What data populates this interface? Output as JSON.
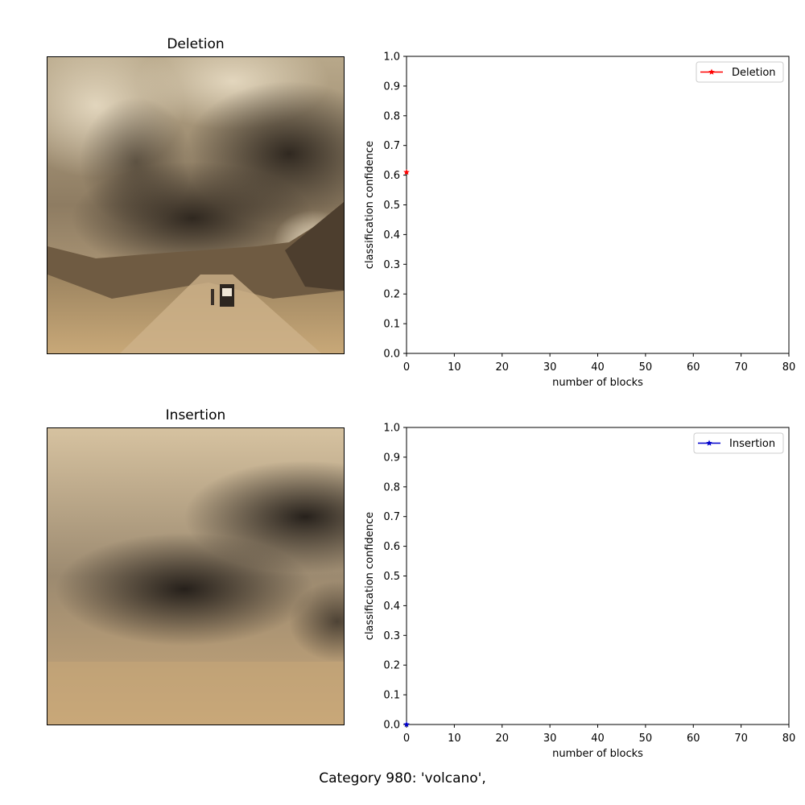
{
  "panels": [
    {
      "image_title": "Deletion"
    },
    {
      "image_title": "Insertion"
    }
  ],
  "caption": "Category  980: 'volcano',",
  "chart_data": [
    {
      "type": "line",
      "title": "",
      "xlabel": "number of blocks",
      "ylabel": "classification confidence",
      "xlim": [
        0,
        80
      ],
      "ylim": [
        0,
        1.0
      ],
      "xticks": [
        "0",
        "10",
        "20",
        "30",
        "40",
        "50",
        "60",
        "70",
        "80"
      ],
      "yticks": [
        "0.0",
        "0.1",
        "0.2",
        "0.3",
        "0.4",
        "0.5",
        "0.6",
        "0.7",
        "0.8",
        "0.9",
        "1.0"
      ],
      "legend_position": "top-right",
      "grid": false,
      "series": [
        {
          "name": "Deletion",
          "color": "#ff0000",
          "marker": "star",
          "x": [
            0
          ],
          "y": [
            0.61
          ]
        }
      ]
    },
    {
      "type": "line",
      "title": "",
      "xlabel": "number of blocks",
      "ylabel": "classification confidence",
      "xlim": [
        0,
        80
      ],
      "ylim": [
        0,
        1.0
      ],
      "xticks": [
        "0",
        "10",
        "20",
        "30",
        "40",
        "50",
        "60",
        "70",
        "80"
      ],
      "yticks": [
        "0.0",
        "0.1",
        "0.2",
        "0.3",
        "0.4",
        "0.5",
        "0.6",
        "0.7",
        "0.8",
        "0.9",
        "1.0"
      ],
      "legend_position": "top-right",
      "grid": false,
      "series": [
        {
          "name": "Insertion",
          "color": "#0000cc",
          "marker": "star",
          "x": [
            0
          ],
          "y": [
            0.0
          ]
        }
      ]
    }
  ]
}
